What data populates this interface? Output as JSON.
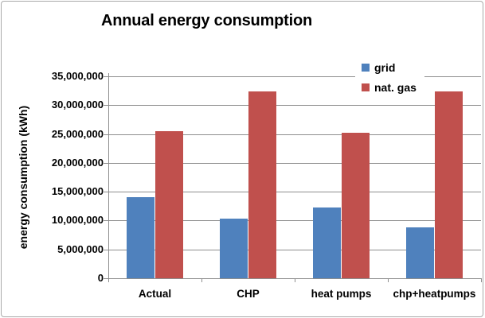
{
  "chart_data": {
    "type": "bar",
    "title": "Annual energy consumption",
    "xlabel": "",
    "ylabel": "energy consumption (kWh)",
    "categories": [
      "Actual",
      "CHP",
      "heat pumps",
      "chp+heatpumps"
    ],
    "series": [
      {
        "name": "grid",
        "color": "#4F81BD",
        "values": [
          14000000,
          10300000,
          12200000,
          8800000
        ]
      },
      {
        "name": "nat. gas",
        "color": "#C0504D",
        "values": [
          25500000,
          32400000,
          25200000,
          32400000
        ]
      }
    ],
    "ylim": [
      0,
      35000000
    ],
    "ytick_step": 5000000,
    "ytick_labels": [
      "0",
      "5,000,000",
      "10,000,000",
      "15,000,000",
      "20,000,000",
      "25,000,000",
      "30,000,000",
      "35,000,000"
    ],
    "grid": "horizontal",
    "legend_position": "top-right",
    "colors": {
      "gridline": "#8e8e8e",
      "axis": "#8e8e8e",
      "frame": "#a9a9a9",
      "text": "#000000"
    }
  }
}
